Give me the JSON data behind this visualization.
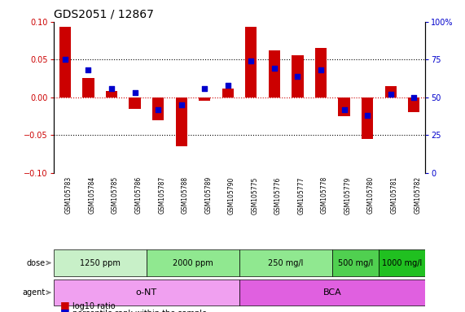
{
  "title": "GDS2051 / 12867",
  "samples": [
    "GSM105783",
    "GSM105784",
    "GSM105785",
    "GSM105786",
    "GSM105787",
    "GSM105788",
    "GSM105789",
    "GSM105790",
    "GSM105775",
    "GSM105776",
    "GSM105777",
    "GSM105778",
    "GSM105779",
    "GSM105780",
    "GSM105781",
    "GSM105782"
  ],
  "log10_ratio": [
    0.093,
    0.025,
    0.008,
    -0.015,
    -0.03,
    -0.065,
    -0.005,
    0.012,
    0.093,
    0.062,
    0.056,
    0.065,
    -0.025,
    -0.055,
    0.015,
    -0.02
  ],
  "percentile": [
    0.75,
    0.68,
    0.56,
    0.53,
    0.42,
    0.45,
    0.56,
    0.58,
    0.74,
    0.69,
    0.64,
    0.68,
    0.42,
    0.38,
    0.52,
    0.5
  ],
  "percentile_ref": 0.5,
  "ylim": [
    -0.1,
    0.1
  ],
  "yticks_left": [
    -0.1,
    -0.05,
    0.0,
    0.05,
    0.1
  ],
  "yticks_right": [
    0,
    25,
    50,
    75,
    100
  ],
  "dose_groups": [
    {
      "label": "1250 ppm",
      "start": 0,
      "end": 4,
      "color": "#c8f0c8"
    },
    {
      "label": "2000 ppm",
      "start": 4,
      "end": 8,
      "color": "#90e890"
    },
    {
      "label": "250 mg/l",
      "start": 8,
      "end": 12,
      "color": "#90e890"
    },
    {
      "label": "500 mg/l",
      "start": 12,
      "end": 14,
      "color": "#50d050"
    },
    {
      "label": "1000 mg/l",
      "start": 14,
      "end": 16,
      "color": "#20c020"
    }
  ],
  "agent_groups": [
    {
      "label": "o-NT",
      "start": 0,
      "end": 8,
      "color": "#f0a0f0"
    },
    {
      "label": "BCA",
      "start": 8,
      "end": 16,
      "color": "#e060e0"
    }
  ],
  "bar_color": "#cc0000",
  "dot_color": "#0000cc",
  "dot_size": 25,
  "bar_width": 0.5,
  "grid_color": "#000000",
  "background_color": "#ffffff",
  "title_fontsize": 10,
  "tick_fontsize": 7,
  "label_fontsize": 8
}
